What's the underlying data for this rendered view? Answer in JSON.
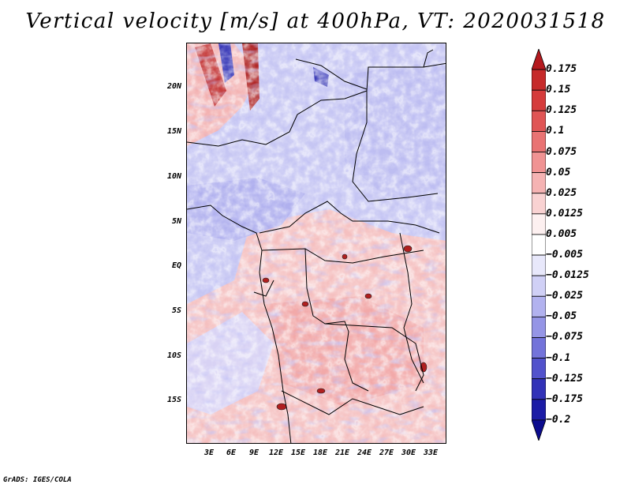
{
  "title": "Vertical velocity [m/s] at 400hPa, VT: 2020031518",
  "credit": "GrADS: IGES/COLA",
  "map": {
    "lat_labels": [
      "20N",
      "15N",
      "10N",
      "5N",
      "EQ",
      "5S",
      "10S",
      "15S"
    ],
    "lon_labels": [
      "3E",
      "6E",
      "9E",
      "12E",
      "15E",
      "18E",
      "21E",
      "24E",
      "27E",
      "30E",
      "33E"
    ]
  },
  "colorbar": {
    "labels": [
      "0.175",
      "0.15",
      "0.125",
      "0.1",
      "0.075",
      "0.05",
      "0.025",
      "0.0125",
      "0.005",
      "−0.005",
      "−0.0125",
      "−0.025",
      "−0.05",
      "−0.075",
      "−0.1",
      "−0.125",
      "−0.175",
      "−0.2"
    ],
    "colors": [
      "#b4191e",
      "#c62a2a",
      "#d53b3b",
      "#e05555",
      "#e97373",
      "#f09393",
      "#f5b3b3",
      "#f9d2d2",
      "#fdf0f0",
      "#ffffff",
      "#e8e8fb",
      "#d0d0f6",
      "#b2b2ef",
      "#9595e6",
      "#7373da",
      "#5252cc",
      "#3232b8",
      "#1c1ca6",
      "#0c0c8e"
    ]
  }
}
